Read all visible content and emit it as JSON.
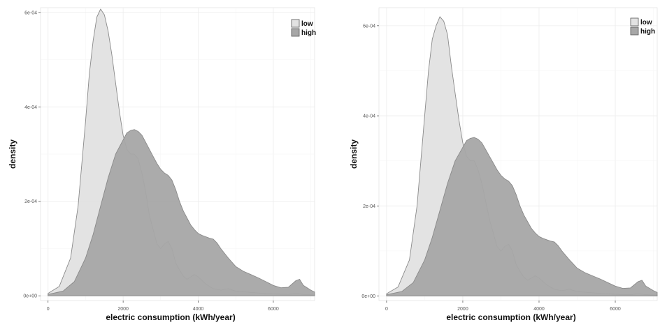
{
  "chart_data": [
    {
      "type": "area",
      "title": "",
      "xlabel": "electric consumption (kWh/year)",
      "ylabel": "density",
      "xlim": [
        -200,
        7100
      ],
      "ylim": [
        -1e-05,
        0.00061
      ],
      "xticks": [
        {
          "value": 0,
          "label": "0"
        },
        {
          "value": 2000,
          "label": "2000"
        },
        {
          "value": 4000,
          "label": "4000"
        },
        {
          "value": 6000,
          "label": "6000"
        }
      ],
      "yticks": [
        {
          "value": 0,
          "label": "0e+00"
        },
        {
          "value": 0.0002,
          "label": "2e-04"
        },
        {
          "value": 0.0004,
          "label": "4e-04"
        },
        {
          "value": 0.0006,
          "label": "6e-04"
        }
      ],
      "grid": true,
      "legend_position": "top-right",
      "series": [
        {
          "name": "low",
          "fill": "#e2e2e2",
          "x": [
            0,
            300,
            600,
            800,
            1000,
            1100,
            1200,
            1300,
            1400,
            1500,
            1600,
            1700,
            1800,
            1900,
            2000,
            2100,
            2200,
            2300,
            2400,
            2500,
            2600,
            2700,
            2800,
            2900,
            3000,
            3100,
            3200,
            3300,
            3400,
            3500,
            3600,
            3700,
            3800,
            3900,
            4000,
            4200,
            4400,
            4600,
            4800,
            5000,
            5300,
            5600,
            6000,
            6400,
            6600,
            6800,
            7100
          ],
          "values": [
            5e-06,
            2e-05,
            8e-05,
            0.00019,
            0.00037,
            0.00047,
            0.00054,
            0.00059,
            0.000607,
            0.000595,
            0.00056,
            0.00051,
            0.00045,
            0.00039,
            0.00034,
            0.00031,
            0.0003,
            0.0003,
            0.00029,
            0.00026,
            0.00022,
            0.00017,
            0.00014,
            0.00011,
            0.0001,
            0.00011,
            0.000115,
            0.0001,
            7e-05,
            5.5e-05,
            4.2e-05,
            3.5e-05,
            4e-05,
            4.5e-05,
            4e-05,
            2.5e-05,
            1.5e-05,
            1.2e-05,
            1.5e-05,
            1e-05,
            8e-06,
            6e-06,
            4e-06,
            3e-06,
            5e-06,
            3e-06,
            2e-06
          ]
        },
        {
          "name": "high",
          "fill": "#a7a7a7",
          "x": [
            0,
            400,
            700,
            1000,
            1200,
            1400,
            1600,
            1800,
            2000,
            2100,
            2200,
            2300,
            2400,
            2500,
            2600,
            2700,
            2800,
            2900,
            3000,
            3100,
            3200,
            3300,
            3400,
            3500,
            3600,
            3700,
            3800,
            3900,
            4000,
            4100,
            4200,
            4300,
            4400,
            4500,
            4600,
            4800,
            5000,
            5200,
            5400,
            5600,
            5800,
            6000,
            6200,
            6400,
            6600,
            6700,
            6800,
            7000,
            7100
          ],
          "values": [
            3e-06,
            1e-05,
            3e-05,
            8e-05,
            0.00013,
            0.00019,
            0.00025,
            0.0003,
            0.00033,
            0.000345,
            0.00035,
            0.000352,
            0.000348,
            0.00034,
            0.000325,
            0.00031,
            0.000295,
            0.00028,
            0.000268,
            0.00026,
            0.000255,
            0.000245,
            0.000225,
            0.0002,
            0.00018,
            0.000165,
            0.00015,
            0.00014,
            0.000132,
            0.000128,
            0.000125,
            0.000122,
            0.00012,
            0.000112,
            0.0001,
            8e-05,
            6.2e-05,
            5.2e-05,
            4.5e-05,
            3.8e-05,
            3e-05,
            2.2e-05,
            1.7e-05,
            1.8e-05,
            3.2e-05,
            3.5e-05,
            2.2e-05,
            1.2e-05,
            8e-06
          ]
        }
      ]
    },
    {
      "type": "area",
      "title": "",
      "xlabel": "electric consumption (kWh/year)",
      "ylabel": "density",
      "xlim": [
        -200,
        7100
      ],
      "ylim": [
        -1e-05,
        0.00064
      ],
      "xticks": [
        {
          "value": 0,
          "label": "0"
        },
        {
          "value": 2000,
          "label": "2000"
        },
        {
          "value": 4000,
          "label": "4000"
        },
        {
          "value": 6000,
          "label": "6000"
        }
      ],
      "yticks": [
        {
          "value": 0,
          "label": "0e+00"
        },
        {
          "value": 0.0002,
          "label": "2e-04"
        },
        {
          "value": 0.0004,
          "label": "4e-04"
        },
        {
          "value": 0.0006,
          "label": "6e-04"
        }
      ],
      "grid": true,
      "legend_position": "top-right",
      "series": [
        {
          "name": "low",
          "fill": "#e2e2e2",
          "x": [
            0,
            300,
            600,
            800,
            1000,
            1100,
            1200,
            1300,
            1400,
            1500,
            1600,
            1700,
            1800,
            1900,
            2000,
            2100,
            2200,
            2300,
            2400,
            2500,
            2600,
            2700,
            2800,
            2900,
            3000,
            3100,
            3200,
            3300,
            3400,
            3500,
            3600,
            3700,
            3800,
            3900,
            4000,
            4200,
            4400,
            4600,
            4800,
            5000,
            5300,
            5600,
            6000,
            6400,
            6600,
            6800,
            7100
          ],
          "values": [
            5e-06,
            2e-05,
            8e-05,
            0.0002,
            0.0004,
            0.0005,
            0.00057,
            0.0006,
            0.00062,
            0.00061,
            0.00058,
            0.00051,
            0.00045,
            0.00039,
            0.00034,
            0.00031,
            0.0003,
            0.0003,
            0.00028,
            0.00025,
            0.00021,
            0.00017,
            0.00014,
            0.00011,
            0.0001,
            0.00011,
            0.000115,
            0.0001,
            7e-05,
            5.5e-05,
            4.2e-05,
            3.5e-05,
            4e-05,
            4.5e-05,
            4e-05,
            2.5e-05,
            1.5e-05,
            1.2e-05,
            1.5e-05,
            1e-05,
            8e-06,
            6e-06,
            4e-06,
            3e-06,
            5e-06,
            3e-06,
            2e-06
          ]
        },
        {
          "name": "high",
          "fill": "#a7a7a7",
          "x": [
            0,
            400,
            700,
            1000,
            1200,
            1400,
            1600,
            1800,
            2000,
            2100,
            2200,
            2300,
            2400,
            2500,
            2600,
            2700,
            2800,
            2900,
            3000,
            3100,
            3200,
            3300,
            3400,
            3500,
            3600,
            3700,
            3800,
            3900,
            4000,
            4100,
            4200,
            4300,
            4400,
            4500,
            4600,
            4800,
            5000,
            5200,
            5400,
            5600,
            5800,
            6000,
            6200,
            6400,
            6600,
            6700,
            6800,
            7000,
            7100
          ],
          "values": [
            3e-06,
            1e-05,
            3e-05,
            8e-05,
            0.00013,
            0.00019,
            0.00025,
            0.0003,
            0.00033,
            0.000345,
            0.00035,
            0.000352,
            0.000348,
            0.00034,
            0.000325,
            0.00031,
            0.000295,
            0.00028,
            0.000268,
            0.00026,
            0.000255,
            0.000245,
            0.000225,
            0.0002,
            0.00018,
            0.000165,
            0.00015,
            0.00014,
            0.000132,
            0.000128,
            0.000125,
            0.000122,
            0.00012,
            0.000112,
            0.0001,
            8e-05,
            6.2e-05,
            5.2e-05,
            4.5e-05,
            3.8e-05,
            3e-05,
            2.2e-05,
            1.7e-05,
            1.8e-05,
            3.2e-05,
            3.5e-05,
            2.2e-05,
            1.2e-05,
            8e-06
          ]
        }
      ]
    }
  ]
}
